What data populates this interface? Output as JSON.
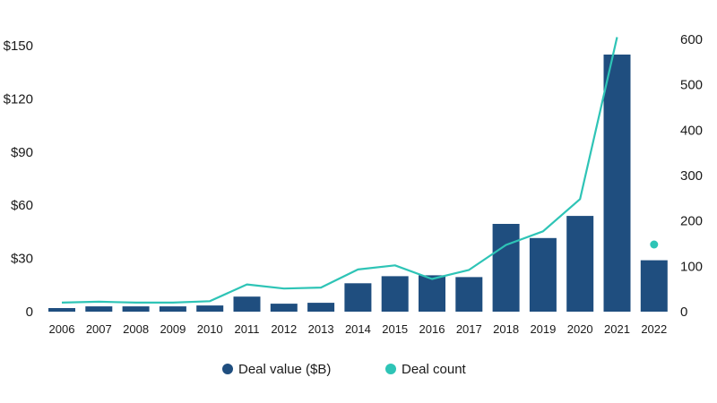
{
  "chart_data": {
    "type": "bar",
    "categories": [
      "2006",
      "2007",
      "2008",
      "2009",
      "2010",
      "2011",
      "2012",
      "2013",
      "2014",
      "2015",
      "2016",
      "2017",
      "2018",
      "2019",
      "2020",
      "2021",
      "2022"
    ],
    "series": [
      {
        "name": "Deal value ($B)",
        "type": "bar",
        "axis": "left",
        "color": "#1f4e7f",
        "values": [
          2,
          3,
          3,
          3,
          3.5,
          8.5,
          4.5,
          5,
          16,
          20,
          20.5,
          19.5,
          49.5,
          41.5,
          54,
          145,
          29
        ]
      },
      {
        "name": "Deal count",
        "type": "line",
        "axis": "right",
        "color": "#2ec4b6",
        "values": [
          20,
          22,
          20,
          20,
          23,
          60,
          51,
          53,
          93,
          102,
          72,
          92,
          147,
          177,
          248,
          605,
          148
        ],
        "last_point_as_marker": true
      }
    ],
    "left_axis": {
      "ticks": [
        "0",
        "$30",
        "$60",
        "$90",
        "$120",
        "$150"
      ],
      "tick_values": [
        0,
        30,
        60,
        90,
        120,
        150
      ],
      "ylim": [
        0,
        150
      ]
    },
    "right_axis": {
      "ticks": [
        "0",
        "100",
        "200",
        "300",
        "400",
        "500",
        "600"
      ],
      "tick_values": [
        0,
        100,
        200,
        300,
        400,
        500,
        600
      ],
      "ylim": [
        0,
        600
      ]
    },
    "legend": {
      "position": "bottom-center",
      "items": [
        {
          "label": "Deal value ($B)",
          "color": "#1f4e7f"
        },
        {
          "label": "Deal count",
          "color": "#2ec4b6"
        }
      ]
    },
    "grid": false,
    "title": "",
    "xlabel": "",
    "ylabel": ""
  }
}
